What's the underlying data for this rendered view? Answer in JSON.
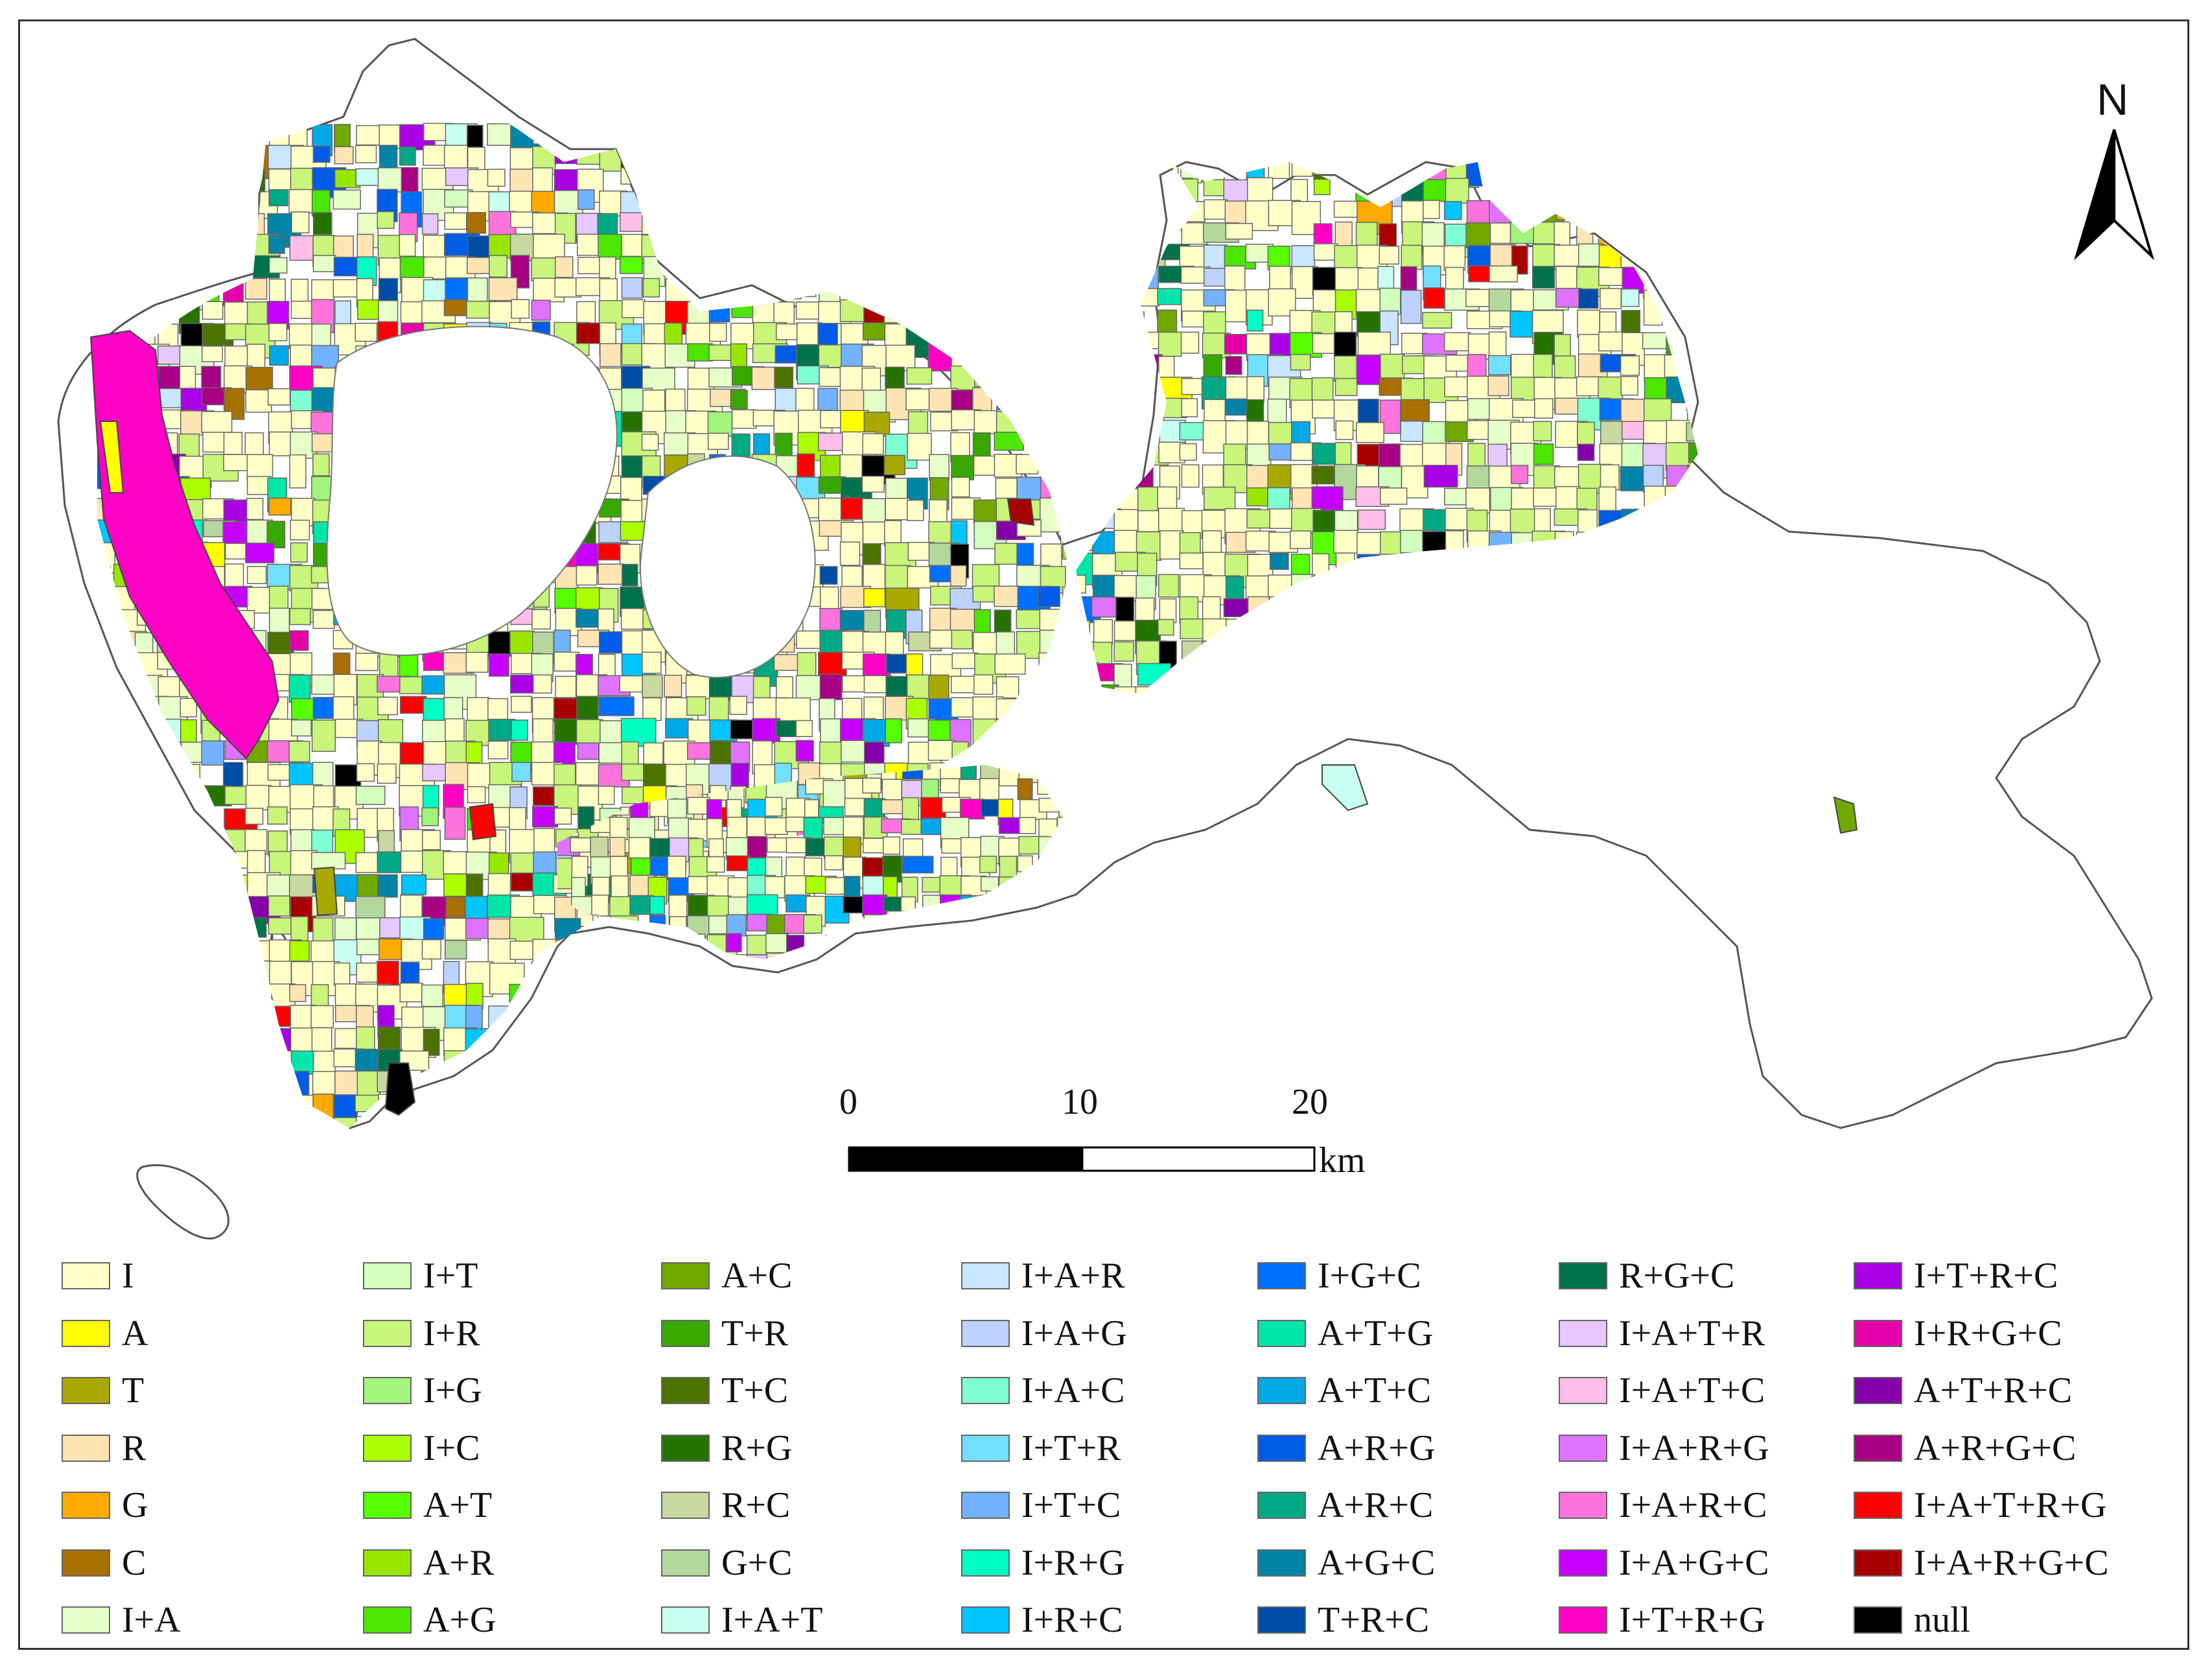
{
  "map": {
    "north_label": "N",
    "scale": {
      "ticks": [
        "0",
        "10",
        "20"
      ],
      "unit": "km"
    },
    "land_use_colors": [
      "#FFFFC8",
      "#FFFF00",
      "#A8A800",
      "#FFE4B4",
      "#FFAA00",
      "#A87000",
      "#E6FFC8",
      "#D2FFBE",
      "#C8F57A",
      "#A0F57A",
      "#AAFF00",
      "#55FF00",
      "#98E600",
      "#4CE600",
      "#70A800",
      "#38A800",
      "#4C7300",
      "#267300",
      "#C8D8A0",
      "#B4D79E",
      "#C8FFF0",
      "#C8E6FF",
      "#BED2FF",
      "#7FFFD4",
      "#73DFFF",
      "#73B2FF",
      "#00FFC5",
      "#00C5FF",
      "#0070FF",
      "#00E6A9",
      "#00A9E6",
      "#005CE6",
      "#00A884",
      "#0084A8",
      "#004DA8",
      "#00734C",
      "#E6C8FF",
      "#FFBEE8",
      "#DF73FF",
      "#FF73DF",
      "#C500FF",
      "#FF00C5",
      "#A900E6",
      "#E600A9",
      "#8400A8",
      "#A80084",
      "#FF0000",
      "#A80000",
      "#000000"
    ]
  },
  "legend": {
    "columns": [
      [
        {
          "label": "I",
          "color": "#FFFFC8"
        },
        {
          "label": "A",
          "color": "#FFFF00"
        },
        {
          "label": "T",
          "color": "#A8A800"
        },
        {
          "label": "R",
          "color": "#FFE4B4"
        },
        {
          "label": "G",
          "color": "#FFAA00"
        },
        {
          "label": "C",
          "color": "#A87000"
        },
        {
          "label": "I+A",
          "color": "#E6FFC8"
        }
      ],
      [
        {
          "label": "I+T",
          "color": "#D2FFBE"
        },
        {
          "label": "I+R",
          "color": "#C8F57A"
        },
        {
          "label": "I+G",
          "color": "#A0F57A"
        },
        {
          "label": "I+C",
          "color": "#AAFF00"
        },
        {
          "label": "A+T",
          "color": "#55FF00"
        },
        {
          "label": "A+R",
          "color": "#98E600"
        },
        {
          "label": "A+G",
          "color": "#4CE600"
        }
      ],
      [
        {
          "label": "A+C",
          "color": "#70A800"
        },
        {
          "label": "T+R",
          "color": "#38A800"
        },
        {
          "label": "T+C",
          "color": "#4C7300"
        },
        {
          "label": "R+G",
          "color": "#267300"
        },
        {
          "label": "R+C",
          "color": "#C8D8A0"
        },
        {
          "label": "G+C",
          "color": "#B4D79E"
        },
        {
          "label": "I+A+T",
          "color": "#C8FFF0"
        }
      ],
      [
        {
          "label": "I+A+R",
          "color": "#C8E6FF"
        },
        {
          "label": "I+A+G",
          "color": "#BED2FF"
        },
        {
          "label": "I+A+C",
          "color": "#7FFFD4"
        },
        {
          "label": "I+T+R",
          "color": "#73DFFF"
        },
        {
          "label": "I+T+C",
          "color": "#73B2FF"
        },
        {
          "label": "I+R+G",
          "color": "#00FFC5"
        },
        {
          "label": "I+R+C",
          "color": "#00C5FF"
        }
      ],
      [
        {
          "label": "I+G+C",
          "color": "#0070FF"
        },
        {
          "label": "A+T+G",
          "color": "#00E6A9"
        },
        {
          "label": "A+T+C",
          "color": "#00A9E6"
        },
        {
          "label": "A+R+G",
          "color": "#005CE6"
        },
        {
          "label": "A+R+C",
          "color": "#00A884"
        },
        {
          "label": "A+G+C",
          "color": "#0084A8"
        },
        {
          "label": "T+R+C",
          "color": "#004DA8"
        }
      ],
      [
        {
          "label": "R+G+C",
          "color": "#00734C"
        },
        {
          "label": "I+A+T+R",
          "color": "#E6C8FF"
        },
        {
          "label": "I+A+T+C",
          "color": "#FFBEE8"
        },
        {
          "label": "I+A+R+G",
          "color": "#DF73FF"
        },
        {
          "label": "I+A+R+C",
          "color": "#FF73DF"
        },
        {
          "label": "I+A+G+C",
          "color": "#C500FF"
        },
        {
          "label": "I+T+R+G",
          "color": "#FF00C5"
        }
      ],
      [
        {
          "label": "I+T+R+C",
          "color": "#A900E6"
        },
        {
          "label": "I+R+G+C",
          "color": "#E600A9"
        },
        {
          "label": "A+T+R+C",
          "color": "#8400A8"
        },
        {
          "label": "A+R+G+C",
          "color": "#A80084"
        },
        {
          "label": "I+A+T+R+G",
          "color": "#FF0000"
        },
        {
          "label": "I+A+R+G+C",
          "color": "#A80000"
        },
        {
          "label": "null",
          "color": "#000000"
        }
      ]
    ]
  }
}
